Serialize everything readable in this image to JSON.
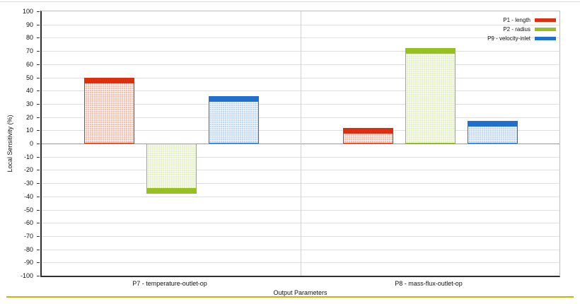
{
  "chart_data": {
    "type": "bar",
    "title": "",
    "xlabel": "Output Parameters",
    "ylabel": "Local Sensitivity (%)",
    "ylim": [
      -100,
      100
    ],
    "ytick_step": 10,
    "grid": true,
    "legend_position": "top-right",
    "categories": [
      "P7 - temperature-outlet-op",
      "P8 - mass-flux-outlet-op"
    ],
    "series": [
      {
        "name": "P1 - length",
        "color": "#dd2f10",
        "fill": "#f2c2b0",
        "values": [
          50,
          12
        ]
      },
      {
        "name": "P2 - radius",
        "color": "#94c11f",
        "fill": "#e4f0c6",
        "values": [
          -38,
          72
        ]
      },
      {
        "name": "P9 - velocity-inlet",
        "color": "#1f6fd0",
        "fill": "#c0d8f2",
        "values": [
          36,
          17
        ]
      }
    ]
  },
  "styles": {
    "separator_color": "#c9b40e",
    "axis_color": "#2f2f2f",
    "grid_color": "#dedede"
  }
}
